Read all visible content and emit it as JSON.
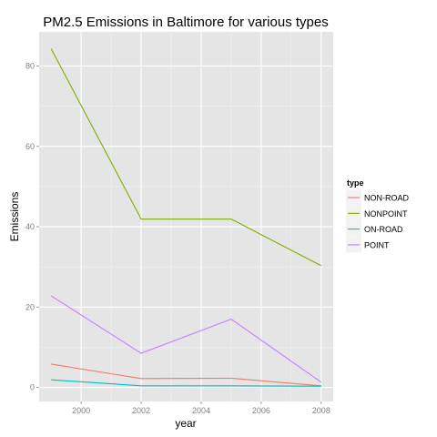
{
  "chart_data": {
    "type": "line",
    "title": "PM2.5 Emissions in Baltimore for various types",
    "xlabel": "year",
    "ylabel": "Emissions",
    "xlim": [
      1998.6,
      2008.4
    ],
    "ylim": [
      -3.5,
      88.5
    ],
    "xticks": [
      2000,
      2002,
      2004,
      2006,
      2008
    ],
    "yticks": [
      0,
      20,
      40,
      60,
      80
    ],
    "x": [
      1999,
      2002,
      2005,
      2008
    ],
    "legend_title": "type",
    "legend_position": "right",
    "grid": true,
    "series": [
      {
        "name": "NON-ROAD",
        "color": "#F8766D",
        "values": [
          5.8,
          2.2,
          2.3,
          0.4
        ]
      },
      {
        "name": "NONPOINT",
        "color": "#7CAE00",
        "values": [
          84.3,
          41.9,
          41.9,
          30.3
        ]
      },
      {
        "name": "ON-ROAD",
        "color": "#00BFC4",
        "values": [
          1.9,
          0.4,
          0.4,
          0.3
        ]
      },
      {
        "name": "POINT",
        "color": "#C77CFF",
        "values": [
          22.8,
          8.5,
          17.0,
          1.3
        ]
      }
    ]
  }
}
